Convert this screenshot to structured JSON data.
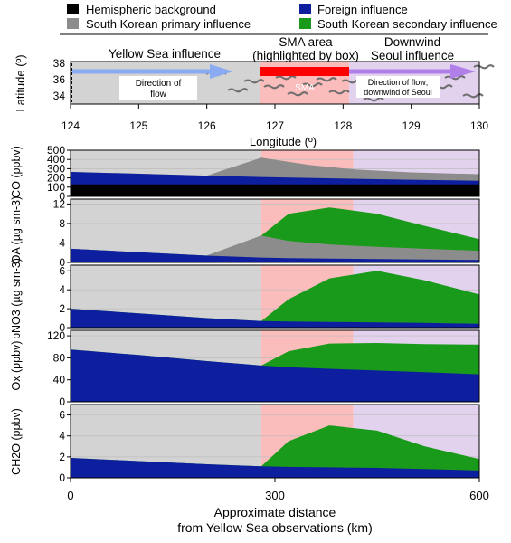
{
  "legend": [
    {
      "label": "Hemispheric background",
      "color": "#000000"
    },
    {
      "label": "Foreign influence",
      "color": "#0d1f9e"
    },
    {
      "label": "South Korean primary influence",
      "color": "#8c8c8c"
    },
    {
      "label": "South Korean secondary influence",
      "color": "#1a9a1a"
    }
  ],
  "regions": {
    "yellow_sea": {
      "label": "Yellow Sea influence",
      "color": "#d3d3d3"
    },
    "sma": {
      "label_line1": "SMA area",
      "label_line2": "(highlighted by box)",
      "color": "#fbbcbc"
    },
    "downwind": {
      "label_line1": "Downwind",
      "label_line2": "Seoul influence",
      "color": "#e2d2ee"
    }
  },
  "map": {
    "ylabel": "Latitude (º)",
    "xlabel": "Longitude (º)",
    "lat_ticks": [
      "38",
      "36",
      "34"
    ],
    "lon_ticks": [
      "124",
      "125",
      "126",
      "127",
      "128",
      "129",
      "130"
    ],
    "arrow_flow_label_line1": "Direction of",
    "arrow_flow_label_line2": "flow",
    "sma_label": "SMA",
    "downwind_label_line1": "Direction of flow;",
    "downwind_label_line2": "downwind of Seoul",
    "colors": {
      "arrow_blue": "#8aaaf2",
      "sma_red": "#ff0000",
      "arrow_purple": "#b07fe8",
      "coast": "#6e6e6e"
    }
  },
  "chart_data": {
    "type": "area",
    "xlabel_line1": "Approximate distance",
    "xlabel_line2": "from Yellow Sea observations (km)",
    "x_ticks": [
      "0",
      "300",
      "600"
    ],
    "x_range_km": [
      0,
      600
    ],
    "region_boundaries_km": [
      0,
      280,
      415,
      600
    ],
    "panels": [
      {
        "ylabel": "CO (ppbv)",
        "ylim": [
          0,
          500
        ],
        "yticks": [
          0,
          100,
          200,
          300,
          400,
          500
        ],
        "x": [
          0,
          100,
          200,
          280,
          350,
          420,
          500,
          600
        ],
        "series": [
          {
            "key": "background",
            "values": [
              130,
              130,
              130,
              130,
              130,
              130,
              130,
              130
            ]
          },
          {
            "key": "foreign",
            "values": [
              265,
              245,
              225,
              210,
              200,
              190,
              180,
              170
            ]
          },
          {
            "key": "primary",
            "values": [
              265,
              245,
              225,
              420,
              340,
              290,
              260,
              240
            ]
          }
        ]
      },
      {
        "ylabel": "OA (µg sm-3)",
        "ylim": [
          0,
          13
        ],
        "yticks": [
          0,
          4,
          8,
          12
        ],
        "x": [
          0,
          100,
          200,
          280,
          320,
          380,
          450,
          520,
          600
        ],
        "series": [
          {
            "key": "foreign",
            "values": [
              2.8,
              2.1,
              1.4,
              1.0,
              0.9,
              0.8,
              0.7,
              0.6,
              0.5
            ]
          },
          {
            "key": "primary",
            "values": [
              2.8,
              2.1,
              1.4,
              5.5,
              4.4,
              3.7,
              3.2,
              2.8,
              2.4
            ]
          },
          {
            "key": "secondary",
            "values": [
              2.8,
              2.1,
              1.4,
              5.5,
              10.0,
              11.3,
              10.0,
              7.5,
              4.8
            ]
          }
        ]
      },
      {
        "ylabel": "pNO3 (µg sm-3)",
        "ylim": [
          0,
          6.6
        ],
        "yticks": [
          0,
          2,
          4,
          6
        ],
        "x": [
          0,
          100,
          200,
          280,
          320,
          380,
          450,
          520,
          600
        ],
        "series": [
          {
            "key": "foreign",
            "values": [
              2.0,
              1.5,
              1.0,
              0.7,
              0.65,
              0.6,
              0.55,
              0.5,
              0.4
            ]
          },
          {
            "key": "secondary",
            "values": [
              2.0,
              1.5,
              1.0,
              0.7,
              3.0,
              5.2,
              6.0,
              5.0,
              3.5
            ]
          }
        ]
      },
      {
        "ylabel": "Ox (ppbv)",
        "ylim": [
          0,
          130
        ],
        "yticks": [
          0,
          40,
          80,
          120
        ],
        "x": [
          0,
          100,
          200,
          280,
          320,
          380,
          450,
          520,
          600
        ],
        "series": [
          {
            "key": "foreign",
            "values": [
              95,
              85,
              74,
              66,
              63,
              60,
              57,
              54,
              50
            ]
          },
          {
            "key": "secondary",
            "values": [
              95,
              85,
              74,
              66,
              92,
              106,
              107,
              105,
              104
            ]
          }
        ]
      },
      {
        "ylabel": "CH2O (ppbv)",
        "ylim": [
          0,
          7
        ],
        "yticks": [
          0,
          2,
          4,
          6
        ],
        "x": [
          0,
          100,
          200,
          280,
          320,
          380,
          450,
          520,
          600
        ],
        "series": [
          {
            "key": "foreign",
            "values": [
              1.9,
              1.6,
              1.3,
              1.1,
              1.05,
              1.0,
              0.95,
              0.85,
              0.7
            ]
          },
          {
            "key": "secondary",
            "values": [
              1.9,
              1.6,
              1.3,
              1.1,
              3.5,
              5.0,
              4.5,
              3.0,
              1.8
            ]
          }
        ]
      }
    ]
  }
}
